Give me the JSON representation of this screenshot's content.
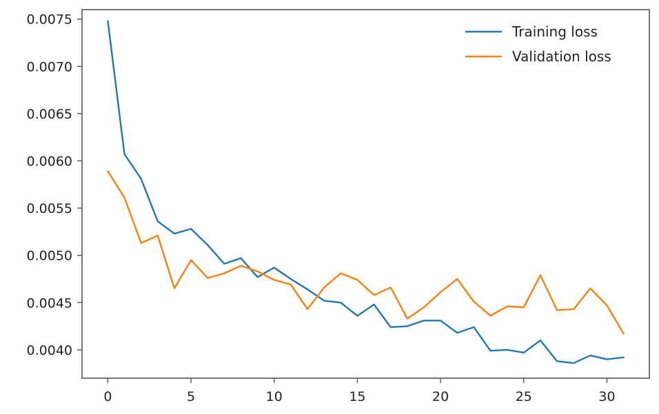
{
  "chart_data": {
    "type": "line",
    "x": [
      0,
      1,
      2,
      3,
      4,
      5,
      6,
      7,
      8,
      9,
      10,
      11,
      12,
      13,
      14,
      15,
      16,
      17,
      18,
      19,
      20,
      21,
      22,
      23,
      24,
      25,
      26,
      27,
      28,
      29,
      30,
      31
    ],
    "series": [
      {
        "name": "Training loss",
        "color": "#1f77b4",
        "values": [
          0.00748,
          0.00607,
          0.00581,
          0.00536,
          0.00523,
          0.00528,
          0.00511,
          0.00491,
          0.00497,
          0.00477,
          0.00487,
          0.00475,
          0.00464,
          0.00452,
          0.0045,
          0.00436,
          0.00448,
          0.00424,
          0.00425,
          0.00431,
          0.00431,
          0.00418,
          0.00424,
          0.00399,
          0.004,
          0.00397,
          0.0041,
          0.00388,
          0.00386,
          0.00394,
          0.0039,
          0.00392
        ]
      },
      {
        "name": "Validation loss",
        "color": "#ff7f0e",
        "values": [
          0.00589,
          0.00561,
          0.00513,
          0.00521,
          0.00465,
          0.00495,
          0.00476,
          0.00481,
          0.00489,
          0.00483,
          0.00474,
          0.00469,
          0.00443,
          0.00466,
          0.00481,
          0.00474,
          0.00458,
          0.00466,
          0.00433,
          0.00445,
          0.00461,
          0.00475,
          0.00451,
          0.00436,
          0.00446,
          0.00445,
          0.00479,
          0.00442,
          0.00443,
          0.00465,
          0.00447,
          0.00417
        ]
      }
    ],
    "xlim": [
      -1.55,
      32.55
    ],
    "ylim": [
      0.0037,
      0.0076
    ],
    "xticks": [
      0,
      5,
      10,
      15,
      20,
      25,
      30
    ],
    "xtick_labels": [
      "0",
      "5",
      "10",
      "15",
      "20",
      "25",
      "30"
    ],
    "yticks": [
      0.004,
      0.0045,
      0.005,
      0.0055,
      0.006,
      0.0065,
      0.007,
      0.0075
    ],
    "ytick_labels": [
      "0.0040",
      "0.0045",
      "0.0050",
      "0.0055",
      "0.0060",
      "0.0065",
      "0.0070",
      "0.0075"
    ],
    "grid": false,
    "legend": {
      "placement": "top-right",
      "entries": [
        "Training loss",
        "Validation loss"
      ]
    }
  }
}
